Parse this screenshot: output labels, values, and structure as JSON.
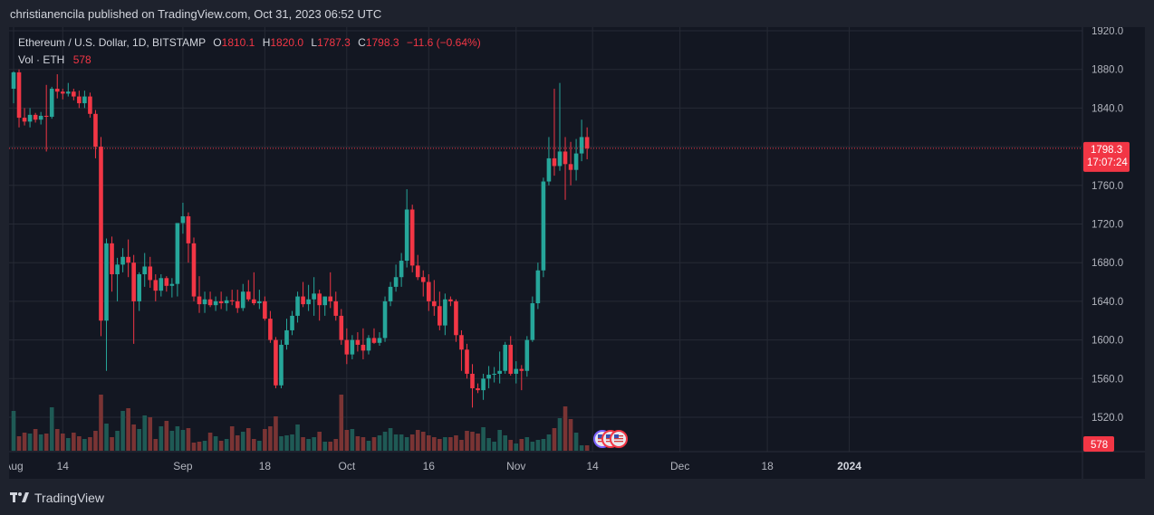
{
  "publisher": "christianencila published on TradingView.com, Oct 31, 2023 06:52 UTC",
  "legend": {
    "symbol": "Ethereum / U.S. Dollar, 1D, BITSTAMP",
    "o_label": "O",
    "o_value": "1810.1",
    "h_label": "H",
    "h_value": "1820.0",
    "l_label": "L",
    "l_value": "1787.3",
    "c_label": "C",
    "c_value": "1798.3",
    "change": "−11.6 (−0.64%)",
    "vol_label": "Vol · ETH",
    "vol_value": "578"
  },
  "footer": {
    "brand": "TradingView"
  },
  "colors": {
    "up": "#26a69a",
    "down": "#f23645",
    "vol_up": "#1f5a55",
    "vol_down": "#7a3434",
    "grid": "#262a35",
    "axis_text": "#b2b5be"
  },
  "chart_data": {
    "type": "candlestick",
    "price_axis": {
      "ticks": [
        1520,
        1560,
        1600,
        1640,
        1680,
        1720,
        1760,
        1800,
        1840,
        1880,
        1920
      ],
      "tick_labels": [
        "1520.0",
        "1560.0",
        "1600.0",
        "1640.0",
        "1680.0",
        "1720.0",
        "1760.0",
        "1800.0",
        "1840.0",
        "1880.0",
        "1920.0"
      ],
      "range": [
        1500,
        1925
      ]
    },
    "time_axis": {
      "labels": [
        "Aug",
        "14",
        "Sep",
        "18",
        "Oct",
        "16",
        "Nov",
        "14",
        "Dec",
        "18",
        "2024"
      ],
      "label_days": [
        0,
        9,
        31,
        46,
        61,
        76,
        92,
        106,
        122,
        138,
        153
      ],
      "bold": [
        "2024"
      ]
    },
    "last_price": {
      "price": 1798.3,
      "label": "1798.3",
      "countdown": "17:07:24"
    },
    "last_volume": {
      "label": "578"
    },
    "candles": [
      [
        1860,
        1878,
        1845,
        1877
      ],
      [
        1877,
        1880,
        1820,
        1830
      ],
      [
        1830,
        1840,
        1822,
        1826
      ],
      [
        1826,
        1840,
        1820,
        1833
      ],
      [
        1833,
        1835,
        1825,
        1828
      ],
      [
        1828,
        1836,
        1823,
        1832
      ],
      [
        1832,
        1864,
        1795,
        1831
      ],
      [
        1831,
        1862,
        1829,
        1860
      ],
      [
        1860,
        1875,
        1850,
        1857
      ],
      [
        1857,
        1860,
        1849,
        1855
      ],
      [
        1855,
        1866,
        1852,
        1857
      ],
      [
        1857,
        1860,
        1848,
        1852
      ],
      [
        1852,
        1858,
        1840,
        1845
      ],
      [
        1845,
        1858,
        1840,
        1852
      ],
      [
        1852,
        1856,
        1830,
        1834
      ],
      [
        1834,
        1838,
        1788,
        1800
      ],
      [
        1800,
        1810,
        1604,
        1620
      ],
      [
        1620,
        1705,
        1568,
        1700
      ],
      [
        1700,
        1707,
        1650,
        1668
      ],
      [
        1668,
        1685,
        1640,
        1678
      ],
      [
        1678,
        1695,
        1670,
        1686
      ],
      [
        1686,
        1704,
        1665,
        1680
      ],
      [
        1680,
        1688,
        1596,
        1640
      ],
      [
        1640,
        1670,
        1630,
        1668
      ],
      [
        1668,
        1690,
        1655,
        1676
      ],
      [
        1676,
        1686,
        1654,
        1662
      ],
      [
        1662,
        1668,
        1640,
        1651
      ],
      [
        1651,
        1668,
        1645,
        1664
      ],
      [
        1664,
        1666,
        1650,
        1656
      ],
      [
        1656,
        1664,
        1644,
        1658
      ],
      [
        1658,
        1720,
        1645,
        1721
      ],
      [
        1721,
        1742,
        1710,
        1728
      ],
      [
        1728,
        1732,
        1680,
        1700
      ],
      [
        1700,
        1706,
        1640,
        1645
      ],
      [
        1645,
        1666,
        1628,
        1637
      ],
      [
        1637,
        1650,
        1628,
        1642
      ],
      [
        1642,
        1650,
        1634,
        1636
      ],
      [
        1636,
        1645,
        1630,
        1640
      ],
      [
        1640,
        1650,
        1632,
        1638
      ],
      [
        1638,
        1645,
        1630,
        1641
      ],
      [
        1641,
        1652,
        1636,
        1640
      ],
      [
        1640,
        1652,
        1628,
        1633
      ],
      [
        1633,
        1658,
        1630,
        1650
      ],
      [
        1650,
        1662,
        1640,
        1642
      ],
      [
        1642,
        1670,
        1636,
        1638
      ],
      [
        1638,
        1652,
        1632,
        1640
      ],
      [
        1640,
        1645,
        1620,
        1622
      ],
      [
        1622,
        1630,
        1597,
        1600
      ],
      [
        1600,
        1603,
        1550,
        1553
      ],
      [
        1553,
        1600,
        1550,
        1595
      ],
      [
        1595,
        1622,
        1590,
        1610
      ],
      [
        1610,
        1630,
        1605,
        1625
      ],
      [
        1625,
        1650,
        1618,
        1645
      ],
      [
        1645,
        1660,
        1634,
        1637
      ],
      [
        1637,
        1657,
        1630,
        1642
      ],
      [
        1642,
        1665,
        1625,
        1648
      ],
      [
        1648,
        1652,
        1620,
        1636
      ],
      [
        1636,
        1645,
        1625,
        1645
      ],
      [
        1645,
        1670,
        1633,
        1640
      ],
      [
        1640,
        1650,
        1620,
        1625
      ],
      [
        1625,
        1632,
        1595,
        1600
      ],
      [
        1600,
        1612,
        1575,
        1585
      ],
      [
        1585,
        1605,
        1580,
        1600
      ],
      [
        1600,
        1608,
        1588,
        1595
      ],
      [
        1595,
        1612,
        1580,
        1589
      ],
      [
        1589,
        1605,
        1585,
        1602
      ],
      [
        1602,
        1612,
        1596,
        1597
      ],
      [
        1597,
        1608,
        1594,
        1602
      ],
      [
        1602,
        1645,
        1598,
        1640
      ],
      [
        1640,
        1660,
        1635,
        1655
      ],
      [
        1655,
        1678,
        1650,
        1665
      ],
      [
        1665,
        1690,
        1655,
        1682
      ],
      [
        1682,
        1756,
        1675,
        1735
      ],
      [
        1735,
        1740,
        1670,
        1677
      ],
      [
        1677,
        1688,
        1662,
        1665
      ],
      [
        1665,
        1672,
        1645,
        1660
      ],
      [
        1660,
        1668,
        1630,
        1640
      ],
      [
        1640,
        1662,
        1625,
        1635
      ],
      [
        1635,
        1650,
        1610,
        1615
      ],
      [
        1615,
        1648,
        1605,
        1642
      ],
      [
        1642,
        1645,
        1635,
        1640
      ],
      [
        1640,
        1642,
        1598,
        1605
      ],
      [
        1605,
        1610,
        1568,
        1590
      ],
      [
        1590,
        1596,
        1560,
        1565
      ],
      [
        1565,
        1575,
        1530,
        1550
      ],
      [
        1550,
        1555,
        1545,
        1548
      ],
      [
        1548,
        1565,
        1538,
        1560
      ],
      [
        1560,
        1573,
        1550,
        1564
      ],
      [
        1564,
        1572,
        1556,
        1565
      ],
      [
        1565,
        1588,
        1555,
        1568
      ],
      [
        1568,
        1598,
        1565,
        1595
      ],
      [
        1595,
        1604,
        1563,
        1565
      ],
      [
        1565,
        1578,
        1555,
        1570
      ],
      [
        1570,
        1574,
        1548,
        1568
      ],
      [
        1568,
        1604,
        1562,
        1600
      ],
      [
        1600,
        1645,
        1598,
        1638
      ],
      [
        1638,
        1680,
        1632,
        1672
      ],
      [
        1672,
        1768,
        1665,
        1764
      ],
      [
        1764,
        1810,
        1760,
        1788
      ],
      [
        1788,
        1860,
        1770,
        1780
      ],
      [
        1780,
        1866,
        1775,
        1795
      ],
      [
        1795,
        1810,
        1745,
        1782
      ],
      [
        1782,
        1805,
        1760,
        1776
      ],
      [
        1776,
        1808,
        1765,
        1793
      ],
      [
        1793,
        1828,
        1785,
        1810
      ],
      [
        1810,
        1820,
        1787,
        1798.3
      ]
    ],
    "volumes": [
      44,
      16,
      20,
      19,
      24,
      18,
      19,
      48,
      24,
      19,
      14,
      20,
      16,
      13,
      15,
      22,
      62,
      30,
      15,
      22,
      44,
      47,
      29,
      24,
      39,
      37,
      13,
      27,
      33,
      22,
      27,
      23,
      25,
      9,
      10,
      11,
      20,
      16,
      11,
      13,
      27,
      17,
      21,
      25,
      13,
      11,
      24,
      27,
      38,
      16,
      17,
      18,
      29,
      15,
      13,
      15,
      21,
      10,
      10,
      13,
      62,
      23,
      24,
      16,
      15,
      11,
      15,
      17,
      21,
      25,
      18,
      18,
      15,
      18,
      23,
      21,
      17,
      15,
      13,
      15,
      15,
      17,
      12,
      22,
      21,
      19,
      26,
      14,
      10,
      23,
      17,
      12,
      8,
      13,
      15,
      10,
      12,
      13,
      18,
      25,
      36,
      49,
      35,
      20,
      6,
      6
    ],
    "event_flags": [
      "US",
      "US",
      "US"
    ]
  }
}
